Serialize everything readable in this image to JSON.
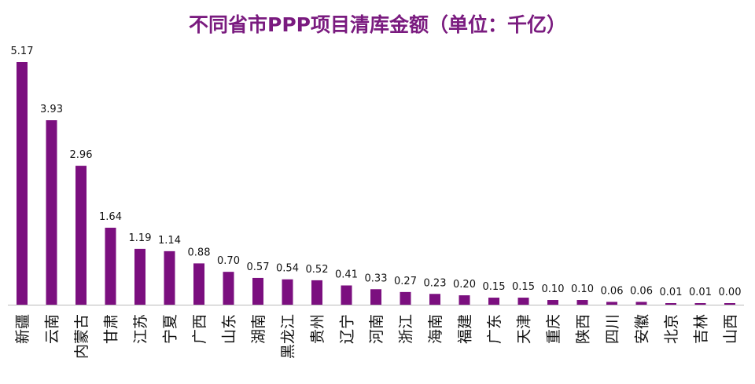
{
  "chart_data": {
    "type": "bar",
    "title": "不同省市PPP项目清库金额（单位：千亿）",
    "xlabel": "",
    "ylabel": "",
    "ylim": [
      0,
      5.17
    ],
    "grid": false,
    "bar_color": "#7b0f7f",
    "categories": [
      "新疆",
      "云南",
      "内蒙古",
      "甘肃",
      "江苏",
      "宁夏",
      "广西",
      "山东",
      "湖南",
      "黑龙江",
      "贵州",
      "辽宁",
      "河南",
      "浙江",
      "海南",
      "福建",
      "广东",
      "天津",
      "重庆",
      "陕西",
      "四川",
      "安徽",
      "北京",
      "吉林",
      "山西"
    ],
    "values": [
      5.17,
      3.93,
      2.96,
      1.64,
      1.19,
      1.14,
      0.88,
      0.7,
      0.57,
      0.54,
      0.52,
      0.41,
      0.33,
      0.27,
      0.23,
      0.2,
      0.15,
      0.15,
      0.1,
      0.1,
      0.06,
      0.06,
      0.01,
      0.01,
      0.0
    ]
  }
}
